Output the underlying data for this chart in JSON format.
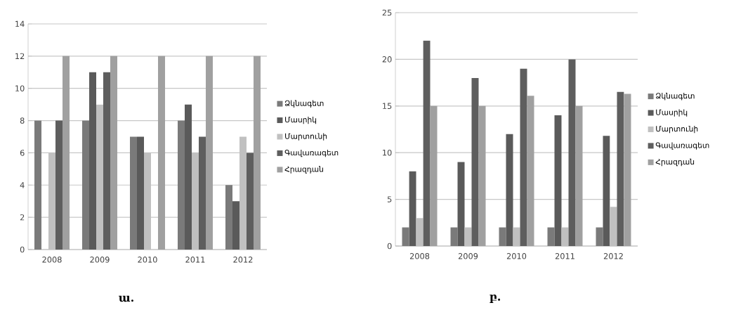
{
  "chart_data": [
    {
      "type": "bar",
      "categories": [
        "2008",
        "2009",
        "2010",
        "2011",
        "2012"
      ],
      "series": [
        {
          "name": "Ձկնագետ",
          "color": "#7a7a7a",
          "values": [
            8,
            8,
            7,
            8,
            4
          ]
        },
        {
          "name": "Մասրիկ",
          "color": "#5a5a5a",
          "values": [
            0,
            11,
            7,
            9,
            3
          ]
        },
        {
          "name": "Մարտունի",
          "color": "#c0c0c0",
          "values": [
            6,
            9,
            6,
            6,
            7
          ]
        },
        {
          "name": "Գավառագետ",
          "color": "#5e5e5e",
          "values": [
            8,
            11,
            0,
            7,
            6
          ]
        },
        {
          "name": "Հրազդան",
          "color": "#a0a0a0",
          "values": [
            12,
            12,
            12,
            12,
            12
          ]
        }
      ],
      "ylim": [
        0,
        14
      ],
      "yticks": [
        0,
        2,
        4,
        6,
        8,
        10,
        12,
        14
      ],
      "grid": "y",
      "legend": "right",
      "annotations": [
        "ա."
      ]
    },
    {
      "type": "bar",
      "categories": [
        "2008",
        "2009",
        "2010",
        "2011",
        "2012"
      ],
      "series": [
        {
          "name": "Ձկնագետ",
          "color": "#7a7a7a",
          "values": [
            2,
            2,
            2,
            2,
            2
          ]
        },
        {
          "name": "Մասրիկ",
          "color": "#5a5a5a",
          "values": [
            8,
            9,
            12,
            14,
            11.8
          ]
        },
        {
          "name": "Մարտունի",
          "color": "#c0c0c0",
          "values": [
            3,
            2,
            2,
            2,
            4.2
          ]
        },
        {
          "name": "Գավառագետ",
          "color": "#5e5e5e",
          "values": [
            22,
            18,
            19,
            20,
            16.5
          ]
        },
        {
          "name": "Հրազդան",
          "color": "#a0a0a0",
          "values": [
            15,
            15,
            16.1,
            15,
            16.3
          ]
        }
      ],
      "ylim": [
        0,
        25
      ],
      "yticks": [
        0,
        5,
        10,
        15,
        20,
        25
      ],
      "grid": "y",
      "legend": "right",
      "annotations": [
        "բ."
      ]
    }
  ]
}
